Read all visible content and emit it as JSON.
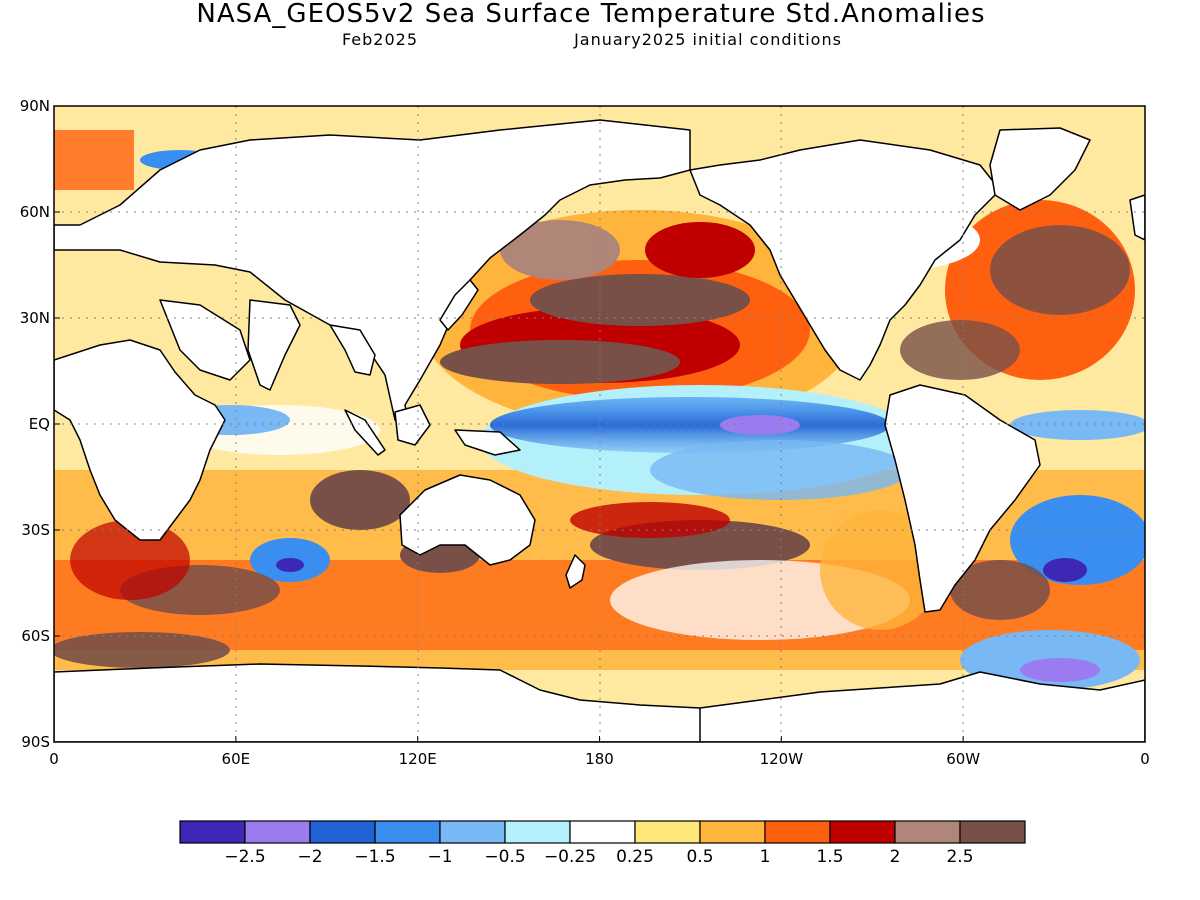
{
  "title": "NASA_GEOS5v2 Sea Surface Temperature Std.Anomalies",
  "subtitle_left": "Feb2025",
  "subtitle_right": "January2025 initial conditions",
  "axes": {
    "lat_ticks": [
      "90N",
      "60N",
      "30N",
      "EQ",
      "30S",
      "60S",
      "90S"
    ],
    "lat_values": [
      90,
      60,
      30,
      0,
      -30,
      -60,
      -90
    ],
    "lon_ticks": [
      "0",
      "60E",
      "120E",
      "180",
      "120W",
      "60W",
      "0"
    ],
    "lon_values": [
      0,
      60,
      120,
      180,
      240,
      300,
      360
    ]
  },
  "colorbar": {
    "colors": [
      "#3c28b4",
      "#9b7cf0",
      "#2163d6",
      "#3a8ef0",
      "#78b8f4",
      "#b4f0fa",
      "#ffffff",
      "#ffe678",
      "#ffb43c",
      "#ff6010",
      "#c00000",
      "#b08678",
      "#785048"
    ],
    "labels": [
      "-2.5",
      "-2",
      "-1.5",
      "-1",
      "-0.5",
      "-0.25",
      "0.25",
      "0.5",
      "1",
      "1.5",
      "2",
      "2.5"
    ]
  }
}
